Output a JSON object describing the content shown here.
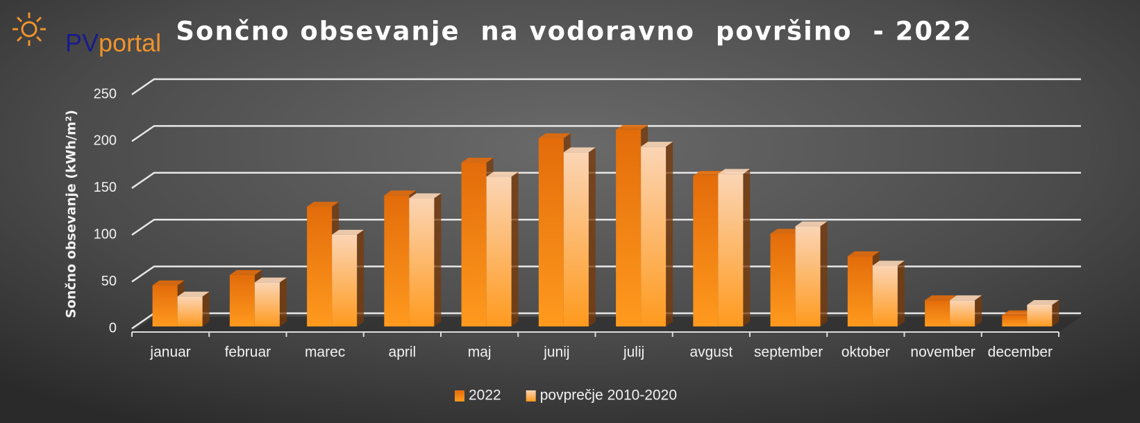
{
  "logo": {
    "pv": "PV",
    "portal": "portal"
  },
  "chart_data": {
    "type": "bar",
    "title": "Sončno obsevanje  na vodoravno  površino  - 2022",
    "y_label": "Sončno obsevanje (kWh/m²)",
    "categories": [
      "januar",
      "februar",
      "marec",
      "april",
      "maj",
      "junij",
      "julij",
      "avgust",
      "september",
      "oktober",
      "november",
      "december"
    ],
    "series": [
      {
        "name": "2022",
        "color": "#e36c0a",
        "values": [
          44,
          55,
          128,
          140,
          175,
          201,
          210,
          161,
          99,
          75,
          28,
          12
        ]
      },
      {
        "name": "povprečje 2010-2020",
        "color": "#fbd5b5",
        "values": [
          32,
          47,
          98,
          137,
          160,
          186,
          192,
          163,
          107,
          65,
          28,
          23
        ]
      }
    ],
    "ylim": [
      0,
      250
    ],
    "yticks": [
      0,
      50,
      100,
      150,
      200,
      250
    ],
    "grid": true,
    "legend": "bottom"
  }
}
